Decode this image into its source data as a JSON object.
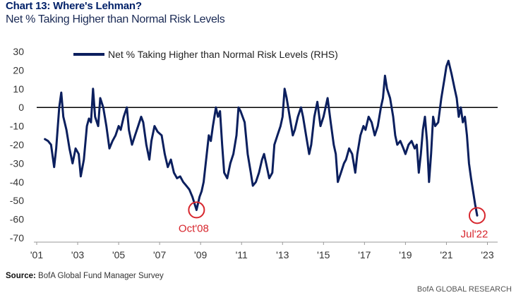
{
  "title": "Chart 13: Where's Lehman?",
  "subtitle": "Net % Taking Higher than Normal Risk Levels",
  "source_label": "Source:",
  "source_text": "BofA Global Fund Manager Survey",
  "footer_right": "BofA GLOBAL RESEARCH",
  "colors": {
    "line": "#0b1f5e",
    "annotation": "#d7262d",
    "axis": "#333333",
    "zero": "#000000"
  },
  "chart_data": {
    "type": "line",
    "title": "Chart 13: Where's Lehman?",
    "ylabel": "Net % Taking Higher than Normal Risk Levels",
    "ylim": [
      -70,
      30
    ],
    "yticks": [
      30,
      20,
      10,
      0,
      -10,
      -20,
      -30,
      -40,
      -50,
      -60,
      -70
    ],
    "xlim": [
      2001.0,
      2023.5
    ],
    "xticks": [
      {
        "label": "'01",
        "x": 2001
      },
      {
        "label": "'03",
        "x": 2003
      },
      {
        "label": "'05",
        "x": 2005
      },
      {
        "label": "'07",
        "x": 2007
      },
      {
        "label": "'09",
        "x": 2009
      },
      {
        "label": "'11",
        "x": 2011
      },
      {
        "label": "'13",
        "x": 2013
      },
      {
        "label": "'15",
        "x": 2015
      },
      {
        "label": "'17",
        "x": 2017
      },
      {
        "label": "'19",
        "x": 2019
      },
      {
        "label": "'21",
        "x": 2021
      },
      {
        "label": "'23",
        "x": 2023
      }
    ],
    "legend": {
      "label": "Net % Taking Higher than Normal Risk Levels (RHS)",
      "position": "top-left"
    },
    "annotations": [
      {
        "label": "Oct'08",
        "x": 2008.8,
        "y": -55
      },
      {
        "label": "Jul'22",
        "x": 2022.5,
        "y": -58
      }
    ],
    "series": [
      {
        "name": "Net % Taking Higher than Normal Risk Levels (RHS)",
        "points": [
          [
            2001.4,
            -17
          ],
          [
            2001.55,
            -18
          ],
          [
            2001.7,
            -20
          ],
          [
            2001.85,
            -32
          ],
          [
            2001.95,
            -22
          ],
          [
            2002.1,
            0
          ],
          [
            2002.2,
            8
          ],
          [
            2002.3,
            -5
          ],
          [
            2002.45,
            -12
          ],
          [
            2002.6,
            -22
          ],
          [
            2002.75,
            -30
          ],
          [
            2002.9,
            -22
          ],
          [
            2003.05,
            -25
          ],
          [
            2003.15,
            -37
          ],
          [
            2003.3,
            -28
          ],
          [
            2003.45,
            -10
          ],
          [
            2003.55,
            -6
          ],
          [
            2003.65,
            -8
          ],
          [
            2003.75,
            10
          ],
          [
            2003.85,
            -5
          ],
          [
            2004.0,
            -10
          ],
          [
            2004.1,
            5
          ],
          [
            2004.25,
            0
          ],
          [
            2004.4,
            -10
          ],
          [
            2004.55,
            -22
          ],
          [
            2004.7,
            -18
          ],
          [
            2004.85,
            -15
          ],
          [
            2005.0,
            -10
          ],
          [
            2005.1,
            -12
          ],
          [
            2005.25,
            -5
          ],
          [
            2005.4,
            0
          ],
          [
            2005.5,
            -12
          ],
          [
            2005.65,
            -20
          ],
          [
            2005.8,
            -15
          ],
          [
            2005.95,
            -10
          ],
          [
            2006.1,
            -5
          ],
          [
            2006.2,
            -8
          ],
          [
            2006.35,
            -20
          ],
          [
            2006.5,
            -28
          ],
          [
            2006.6,
            -18
          ],
          [
            2006.75,
            -10
          ],
          [
            2006.9,
            -13
          ],
          [
            2007.0,
            -14
          ],
          [
            2007.1,
            -15
          ],
          [
            2007.25,
            -25
          ],
          [
            2007.4,
            -32
          ],
          [
            2007.55,
            -28
          ],
          [
            2007.7,
            -35
          ],
          [
            2007.85,
            -38
          ],
          [
            2008.0,
            -37
          ],
          [
            2008.15,
            -40
          ],
          [
            2008.3,
            -42
          ],
          [
            2008.45,
            -44
          ],
          [
            2008.6,
            -48
          ],
          [
            2008.8,
            -55
          ],
          [
            2008.95,
            -48
          ],
          [
            2009.05,
            -45
          ],
          [
            2009.15,
            -40
          ],
          [
            2009.3,
            -25
          ],
          [
            2009.4,
            -15
          ],
          [
            2009.5,
            -18
          ],
          [
            2009.6,
            -10
          ],
          [
            2009.75,
            0
          ],
          [
            2009.85,
            -5
          ],
          [
            2009.95,
            -2
          ],
          [
            2010.05,
            -20
          ],
          [
            2010.15,
            -35
          ],
          [
            2010.3,
            -38
          ],
          [
            2010.45,
            -30
          ],
          [
            2010.6,
            -25
          ],
          [
            2010.75,
            -15
          ],
          [
            2010.85,
            0
          ],
          [
            2010.95,
            -2
          ],
          [
            2011.05,
            -5
          ],
          [
            2011.15,
            -8
          ],
          [
            2011.3,
            -25
          ],
          [
            2011.45,
            -35
          ],
          [
            2011.55,
            -42
          ],
          [
            2011.7,
            -40
          ],
          [
            2011.85,
            -35
          ],
          [
            2012.0,
            -28
          ],
          [
            2012.1,
            -25
          ],
          [
            2012.2,
            -30
          ],
          [
            2012.35,
            -38
          ],
          [
            2012.5,
            -35
          ],
          [
            2012.6,
            -20
          ],
          [
            2012.75,
            -15
          ],
          [
            2012.9,
            -10
          ],
          [
            2013.0,
            -5
          ],
          [
            2013.1,
            10
          ],
          [
            2013.2,
            5
          ],
          [
            2013.35,
            -5
          ],
          [
            2013.5,
            -15
          ],
          [
            2013.6,
            -12
          ],
          [
            2013.75,
            -5
          ],
          [
            2013.9,
            0
          ],
          [
            2014.0,
            -5
          ],
          [
            2014.15,
            -15
          ],
          [
            2014.3,
            -25
          ],
          [
            2014.4,
            -20
          ],
          [
            2014.55,
            -5
          ],
          [
            2014.7,
            3
          ],
          [
            2014.85,
            -10
          ],
          [
            2015.0,
            -5
          ],
          [
            2015.1,
            0
          ],
          [
            2015.2,
            5
          ],
          [
            2015.35,
            -8
          ],
          [
            2015.5,
            -20
          ],
          [
            2015.6,
            -25
          ],
          [
            2015.7,
            -40
          ],
          [
            2015.85,
            -35
          ],
          [
            2016.0,
            -30
          ],
          [
            2016.1,
            -28
          ],
          [
            2016.25,
            -22
          ],
          [
            2016.4,
            -25
          ],
          [
            2016.55,
            -35
          ],
          [
            2016.65,
            -25
          ],
          [
            2016.8,
            -15
          ],
          [
            2016.95,
            -10
          ],
          [
            2017.05,
            -12
          ],
          [
            2017.2,
            -5
          ],
          [
            2017.35,
            -8
          ],
          [
            2017.5,
            -15
          ],
          [
            2017.65,
            -10
          ],
          [
            2017.8,
            0
          ],
          [
            2017.9,
            5
          ],
          [
            2018.0,
            17
          ],
          [
            2018.1,
            10
          ],
          [
            2018.25,
            5
          ],
          [
            2018.4,
            -5
          ],
          [
            2018.5,
            -15
          ],
          [
            2018.6,
            -20
          ],
          [
            2018.75,
            -18
          ],
          [
            2018.9,
            -22
          ],
          [
            2019.0,
            -25
          ],
          [
            2019.15,
            -20
          ],
          [
            2019.3,
            -18
          ],
          [
            2019.45,
            -22
          ],
          [
            2019.55,
            -20
          ],
          [
            2019.65,
            -35
          ],
          [
            2019.75,
            -25
          ],
          [
            2019.85,
            -12
          ],
          [
            2019.95,
            -5
          ],
          [
            2020.05,
            -18
          ],
          [
            2020.15,
            -40
          ],
          [
            2020.25,
            -25
          ],
          [
            2020.35,
            -5
          ],
          [
            2020.45,
            -10
          ],
          [
            2020.6,
            -8
          ],
          [
            2020.75,
            5
          ],
          [
            2020.9,
            15
          ],
          [
            2021.0,
            22
          ],
          [
            2021.1,
            25
          ],
          [
            2021.25,
            18
          ],
          [
            2021.4,
            10
          ],
          [
            2021.5,
            5
          ],
          [
            2021.6,
            -5
          ],
          [
            2021.7,
            0
          ],
          [
            2021.8,
            -8
          ],
          [
            2021.9,
            -5
          ],
          [
            2022.0,
            -15
          ],
          [
            2022.1,
            -30
          ],
          [
            2022.2,
            -38
          ],
          [
            2022.3,
            -45
          ],
          [
            2022.4,
            -52
          ],
          [
            2022.5,
            -58
          ]
        ]
      }
    ]
  }
}
